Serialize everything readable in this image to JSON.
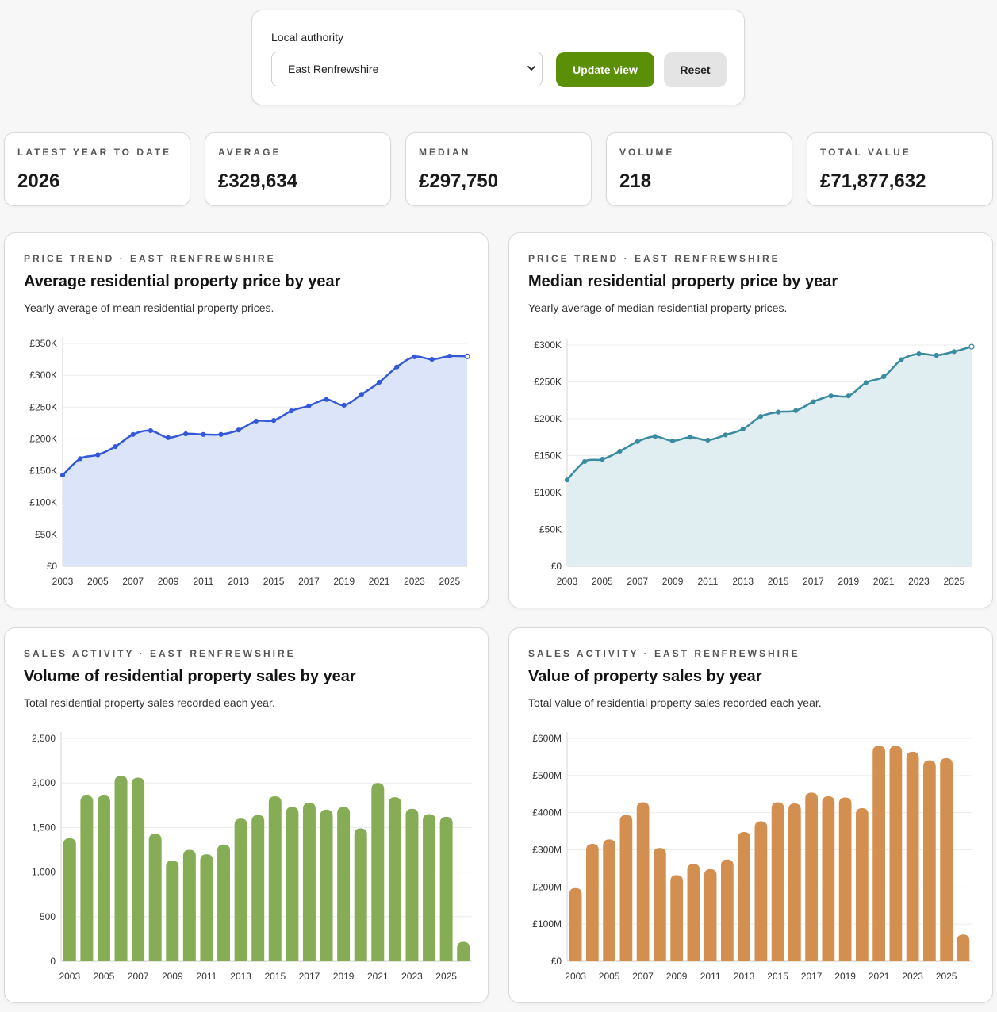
{
  "filter": {
    "label": "Local authority",
    "selected": "East Renfrewshire",
    "update_label": "Update view",
    "reset_label": "Reset"
  },
  "stats": [
    {
      "label": "LATEST YEAR TO DATE",
      "value": "2026"
    },
    {
      "label": "AVERAGE",
      "value": "£329,634"
    },
    {
      "label": "MEDIAN",
      "value": "£297,750"
    },
    {
      "label": "VOLUME",
      "value": "218"
    },
    {
      "label": "TOTAL VALUE",
      "value": "£71,877,632"
    }
  ],
  "cards": [
    {
      "eyebrow": "PRICE TREND · EAST RENFREWSHIRE",
      "title": "Average residential property price by year",
      "subtitle": "Yearly average of mean residential property prices."
    },
    {
      "eyebrow": "PRICE TREND · EAST RENFREWSHIRE",
      "title": "Median residential property price by year",
      "subtitle": "Yearly average of median residential property prices."
    },
    {
      "eyebrow": "SALES ACTIVITY · EAST RENFREWSHIRE",
      "title": "Volume of residential property sales by year",
      "subtitle": "Total residential property sales recorded each year."
    },
    {
      "eyebrow": "SALES ACTIVITY · EAST RENFREWSHIRE",
      "title": "Value of property sales by year",
      "subtitle": "Total value of residential property sales recorded each year."
    }
  ],
  "colors": {
    "avg_line": "#3358d8",
    "avg_fill": "#dbe4f9",
    "median_line": "#3a8aa0",
    "median_fill": "#e0edf1",
    "volume_bar": "#86ad55",
    "value_bar": "#d38f4f",
    "update_button": "#5b8f07"
  },
  "chart_data": [
    {
      "type": "area",
      "x": [
        2003,
        2004,
        2005,
        2006,
        2007,
        2008,
        2009,
        2010,
        2011,
        2012,
        2013,
        2014,
        2015,
        2016,
        2017,
        2018,
        2019,
        2020,
        2021,
        2022,
        2023,
        2024,
        2025,
        2026
      ],
      "values": [
        143000,
        169000,
        175000,
        188000,
        207000,
        213000,
        202000,
        208000,
        207000,
        207000,
        214000,
        228000,
        229000,
        244000,
        252000,
        262000,
        253000,
        270000,
        289000,
        313000,
        329000,
        325000,
        330000,
        329634
      ],
      "ylim": [
        0,
        350000
      ],
      "yticks": [
        0,
        50000,
        100000,
        150000,
        200000,
        250000,
        300000,
        350000
      ],
      "ytick_labels": [
        "£0",
        "£50K",
        "£100K",
        "£150K",
        "£200K",
        "£250K",
        "£300K",
        "£350K"
      ],
      "xtick_labels": [
        "2003",
        "2005",
        "2007",
        "2009",
        "2011",
        "2013",
        "2015",
        "2017",
        "2019",
        "2021",
        "2023",
        "2025"
      ],
      "grid": true
    },
    {
      "type": "area",
      "x": [
        2003,
        2004,
        2005,
        2006,
        2007,
        2008,
        2009,
        2010,
        2011,
        2012,
        2013,
        2014,
        2015,
        2016,
        2017,
        2018,
        2019,
        2020,
        2021,
        2022,
        2023,
        2024,
        2025,
        2026
      ],
      "values": [
        117000,
        142000,
        145000,
        156000,
        169000,
        176000,
        170000,
        175000,
        171000,
        178000,
        186000,
        203000,
        209000,
        211000,
        223000,
        231000,
        231000,
        249000,
        257000,
        280000,
        288000,
        286000,
        291000,
        297750
      ],
      "ylim": [
        0,
        300000
      ],
      "yticks": [
        0,
        50000,
        100000,
        150000,
        200000,
        250000,
        300000
      ],
      "ytick_labels": [
        "£0",
        "£50K",
        "£100K",
        "£150K",
        "£200K",
        "£250K",
        "£300K"
      ],
      "xtick_labels": [
        "2003",
        "2005",
        "2007",
        "2009",
        "2011",
        "2013",
        "2015",
        "2017",
        "2019",
        "2021",
        "2023",
        "2025"
      ],
      "grid": true
    },
    {
      "type": "bar",
      "x": [
        2003,
        2004,
        2005,
        2006,
        2007,
        2008,
        2009,
        2010,
        2011,
        2012,
        2013,
        2014,
        2015,
        2016,
        2017,
        2018,
        2019,
        2020,
        2021,
        2022,
        2023,
        2024,
        2025,
        2026
      ],
      "values": [
        1380,
        1860,
        1860,
        2080,
        2060,
        1430,
        1130,
        1250,
        1200,
        1310,
        1600,
        1640,
        1850,
        1730,
        1780,
        1700,
        1730,
        1490,
        2000,
        1840,
        1710,
        1650,
        1620,
        218
      ],
      "ylim": [
        0,
        2500
      ],
      "yticks": [
        0,
        500,
        1000,
        1500,
        2000,
        2500
      ],
      "ytick_labels": [
        "0",
        "500",
        "1,000",
        "1,500",
        "2,000",
        "2,500"
      ],
      "xtick_labels": [
        "2003",
        "2005",
        "2007",
        "2009",
        "2011",
        "2013",
        "2015",
        "2017",
        "2019",
        "2021",
        "2023",
        "2025"
      ],
      "grid": true
    },
    {
      "type": "bar",
      "x": [
        2003,
        2004,
        2005,
        2006,
        2007,
        2008,
        2009,
        2010,
        2011,
        2012,
        2013,
        2014,
        2015,
        2016,
        2017,
        2018,
        2019,
        2020,
        2021,
        2022,
        2023,
        2024,
        2025,
        2026
      ],
      "values": [
        197,
        316,
        328,
        394,
        428,
        305,
        232,
        262,
        248,
        274,
        348,
        377,
        428,
        425,
        454,
        444,
        441,
        412,
        580,
        580,
        564,
        541,
        547,
        72
      ],
      "ylim": [
        0,
        600
      ],
      "yticks": [
        0,
        100,
        200,
        300,
        400,
        500,
        600
      ],
      "ytick_labels": [
        "£0",
        "£100M",
        "£200M",
        "£300M",
        "£400M",
        "£500M",
        "£600M"
      ],
      "xtick_labels": [
        "2003",
        "2005",
        "2007",
        "2009",
        "2011",
        "2013",
        "2015",
        "2017",
        "2019",
        "2021",
        "2023",
        "2025"
      ],
      "grid": true
    }
  ]
}
